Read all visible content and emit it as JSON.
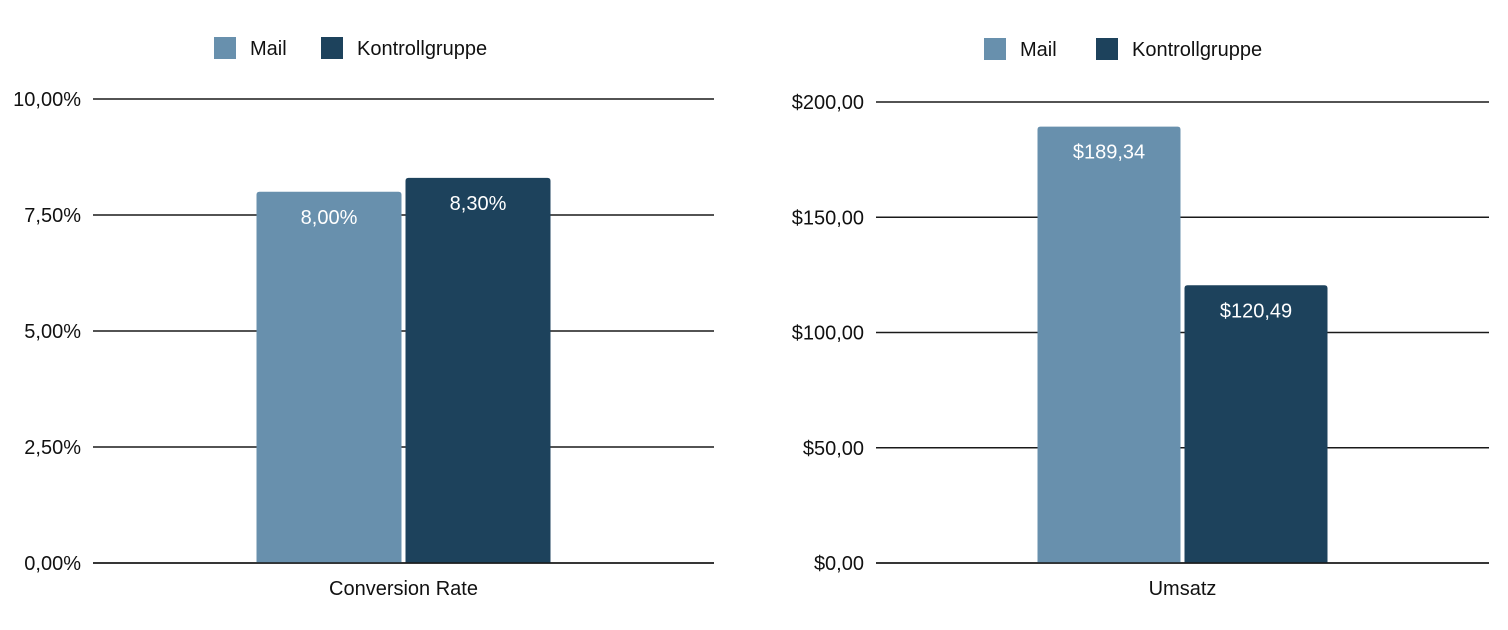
{
  "colors": {
    "mail": "#6890ad",
    "kontrollgruppe": "#1d425c",
    "gridline": "#1a1a1a"
  },
  "chart_data": [
    {
      "type": "bar",
      "categories": [
        "Conversion Rate"
      ],
      "series": [
        {
          "name": "Mail",
          "values": [
            8.0
          ],
          "labels": [
            "8,00%"
          ]
        },
        {
          "name": "Kontrollgruppe",
          "values": [
            8.3
          ],
          "labels": [
            "8,30%"
          ]
        }
      ],
      "ylim": [
        0,
        10
      ],
      "yticks": [
        0,
        2.5,
        5,
        7.5,
        10
      ],
      "ytick_labels": [
        "0,00%",
        "2,50%",
        "5,00%",
        "7,50%",
        "10,00%"
      ],
      "legend": "top-center",
      "grid": true
    },
    {
      "type": "bar",
      "categories": [
        "Umsatz"
      ],
      "series": [
        {
          "name": "Mail",
          "values": [
            189.34
          ],
          "labels": [
            "$189,34"
          ]
        },
        {
          "name": "Kontrollgruppe",
          "values": [
            120.49
          ],
          "labels": [
            "$120,49"
          ]
        }
      ],
      "ylim": [
        0,
        200
      ],
      "yticks": [
        0,
        50,
        100,
        150,
        200
      ],
      "ytick_labels": [
        "$0,00",
        "$50,00",
        "$100,00",
        "$150,00",
        "$200,00"
      ],
      "legend": "top-center",
      "grid": true
    }
  ]
}
